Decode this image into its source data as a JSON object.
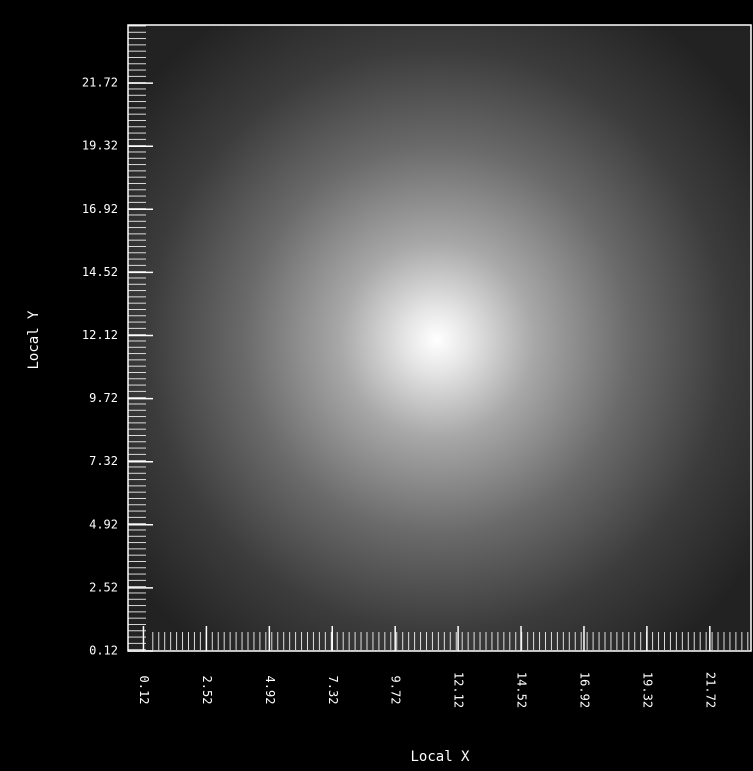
{
  "chart_data": {
    "type": "image",
    "xlabel": "Local X",
    "ylabel": "Local Y",
    "xlim": [
      -0.47,
      23.29
    ],
    "ylim": [
      0.12,
      23.93
    ],
    "xticks": [
      0.12,
      2.52,
      4.92,
      7.32,
      9.72,
      12.12,
      14.52,
      16.92,
      19.32,
      21.72
    ],
    "yticks": [
      0.12,
      2.52,
      4.92,
      7.32,
      9.72,
      12.12,
      14.52,
      16.92,
      19.32,
      21.72
    ]
  }
}
